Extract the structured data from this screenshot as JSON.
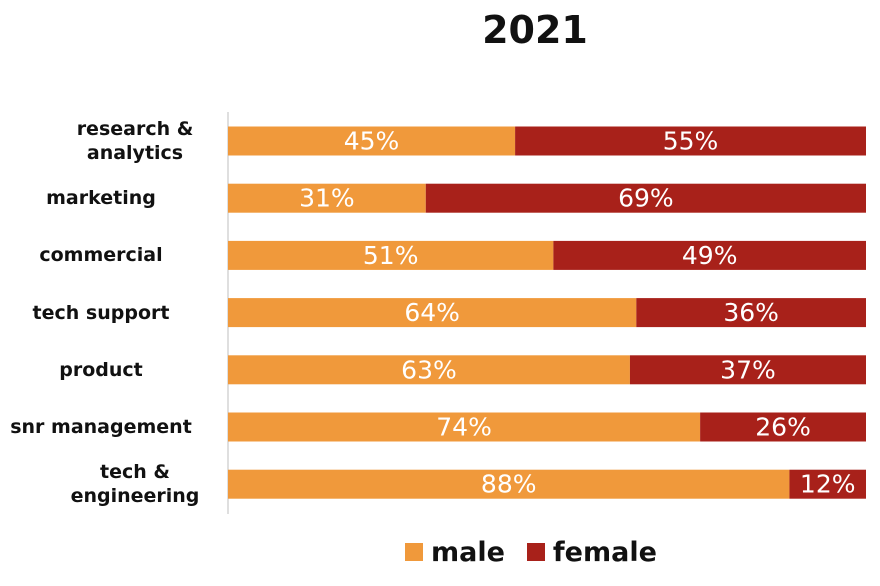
{
  "chart_data": {
    "type": "bar",
    "orientation": "horizontal",
    "stacked": true,
    "title": "2021",
    "categories": [
      "research & analytics",
      "marketing",
      "commercial",
      "tech support",
      "product",
      "snr management",
      "tech & engineering"
    ],
    "series": [
      {
        "name": "male",
        "color": "#F0993B",
        "values": [
          45,
          31,
          51,
          64,
          63,
          74,
          88
        ]
      },
      {
        "name": "female",
        "color": "#A8211A",
        "values": [
          55,
          69,
          49,
          36,
          37,
          26,
          12
        ]
      }
    ],
    "value_suffix": "%",
    "xlim": [
      0,
      100
    ],
    "grid": false,
    "legend_position": "bottom"
  }
}
